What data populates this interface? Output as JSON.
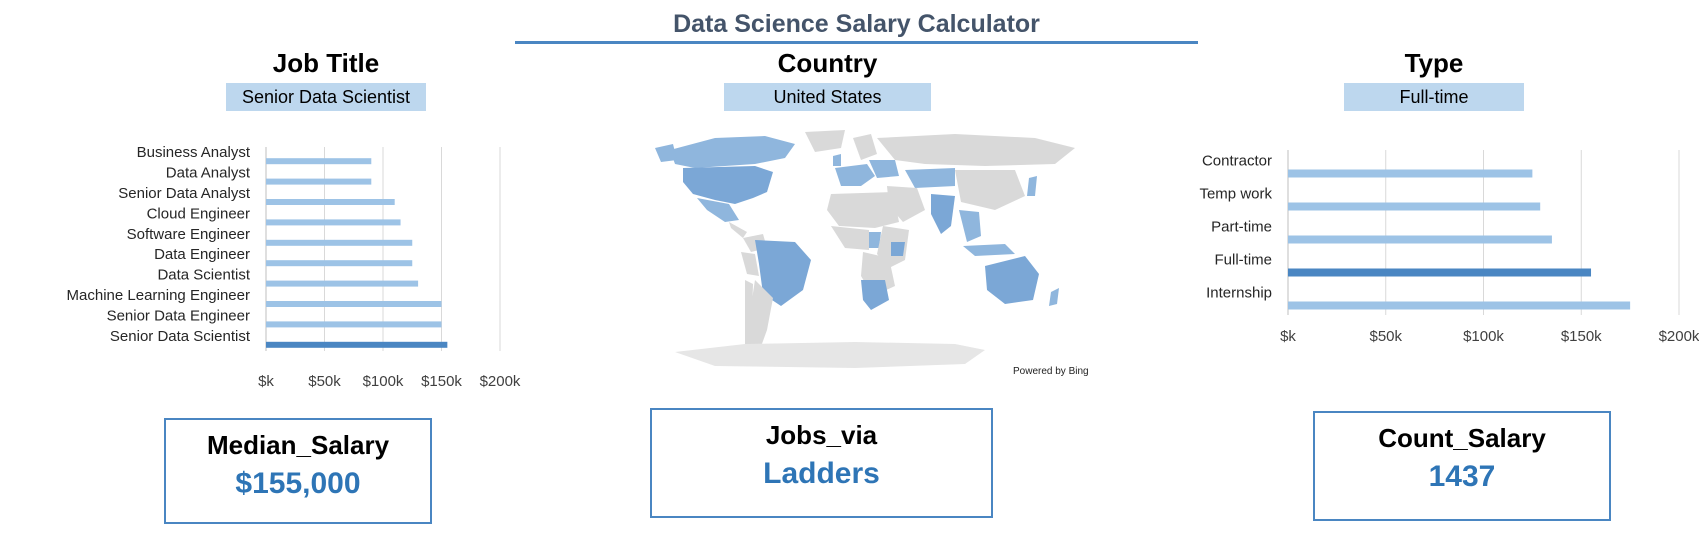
{
  "title": "Data Science Salary Calculator",
  "filters": {
    "job_title": {
      "header": "Job Title",
      "selected": "Senior Data Scientist"
    },
    "country": {
      "header": "Country",
      "selected": "United States"
    },
    "type": {
      "header": "Type",
      "selected": "Full-time"
    }
  },
  "map": {
    "attribution": "Powered by Bing"
  },
  "kpis": {
    "median_salary": {
      "label": "Median_Salary",
      "value": "$155,000"
    },
    "jobs_via": {
      "label": "Jobs_via",
      "value": "Ladders"
    },
    "count_salary": {
      "label": "Count_Salary",
      "value": "1437"
    }
  },
  "colors": {
    "bar": "#9dc3e6",
    "bar_selected": "#4a86c2",
    "accent_text": "#2e75b6"
  },
  "chart_data": [
    {
      "type": "bar",
      "orientation": "horizontal",
      "categories": [
        "Business Analyst",
        "Data Analyst",
        "Senior Data Analyst",
        "Cloud Engineer",
        "Software Engineer",
        "Data Engineer",
        "Data Scientist",
        "Machine Learning Engineer",
        "Senior Data Engineer",
        "Senior Data Scientist"
      ],
      "values": [
        90000,
        90000,
        110000,
        115000,
        125000,
        125000,
        130000,
        150000,
        150000,
        155000
      ],
      "highlight": "Senior Data Scientist",
      "xlim": [
        0,
        200000
      ],
      "ticks": [
        0,
        50000,
        100000,
        150000,
        200000
      ],
      "tick_labels": [
        "$k",
        "$50k",
        "$100k",
        "$150k",
        "$200k"
      ],
      "grid": true
    },
    {
      "type": "bar",
      "orientation": "horizontal",
      "categories": [
        "Contractor",
        "Temp work",
        "Part-time",
        "Full-time",
        "Internship"
      ],
      "values": [
        125000,
        129000,
        135000,
        155000,
        175000
      ],
      "highlight": "Full-time",
      "xlim": [
        0,
        200000
      ],
      "ticks": [
        0,
        50000,
        100000,
        150000,
        200000
      ],
      "tick_labels": [
        "$k",
        "$50k",
        "$100k",
        "$150k",
        "$200k"
      ],
      "grid": true
    }
  ]
}
